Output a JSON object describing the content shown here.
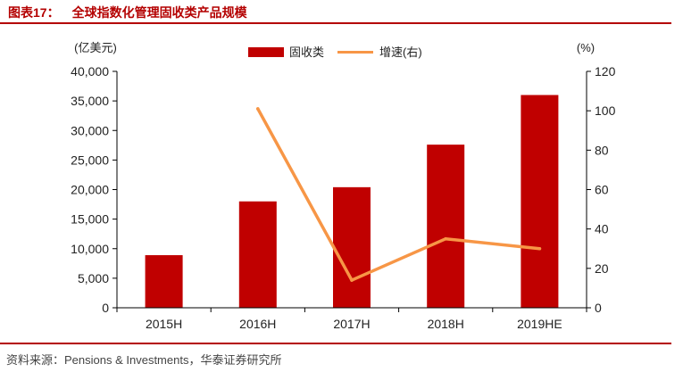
{
  "header": {
    "figure_label": "图表17：",
    "title": "全球指数化管理固收类产品规模"
  },
  "source": "资料来源：Pensions & Investments，华泰证券研究所",
  "chart_data": {
    "type": "bar",
    "categories": [
      "2015H",
      "2016H",
      "2017H",
      "2018H",
      "2019HE"
    ],
    "left_axis_unit": "(亿美元)",
    "right_axis_unit": "(%)",
    "y_left": {
      "min": 0,
      "max": 40000,
      "step": 5000,
      "ticks": [
        "0",
        "5,000",
        "10,000",
        "15,000",
        "20,000",
        "25,000",
        "30,000",
        "35,000",
        "40,000"
      ]
    },
    "y_right": {
      "min": 0,
      "max": 120,
      "step": 20,
      "ticks": [
        "0",
        "20",
        "40",
        "60",
        "80",
        "100",
        "120"
      ]
    },
    "series": [
      {
        "name": "固收类",
        "type": "bar",
        "axis": "left",
        "color": "#c00000",
        "values": [
          8900,
          18000,
          20400,
          27600,
          36000
        ]
      },
      {
        "name": "增速(右)",
        "type": "line",
        "axis": "right",
        "color": "#f79646",
        "values": [
          null,
          101,
          14,
          35,
          30
        ]
      }
    ],
    "legend_position": "top-center",
    "grid": false
  }
}
